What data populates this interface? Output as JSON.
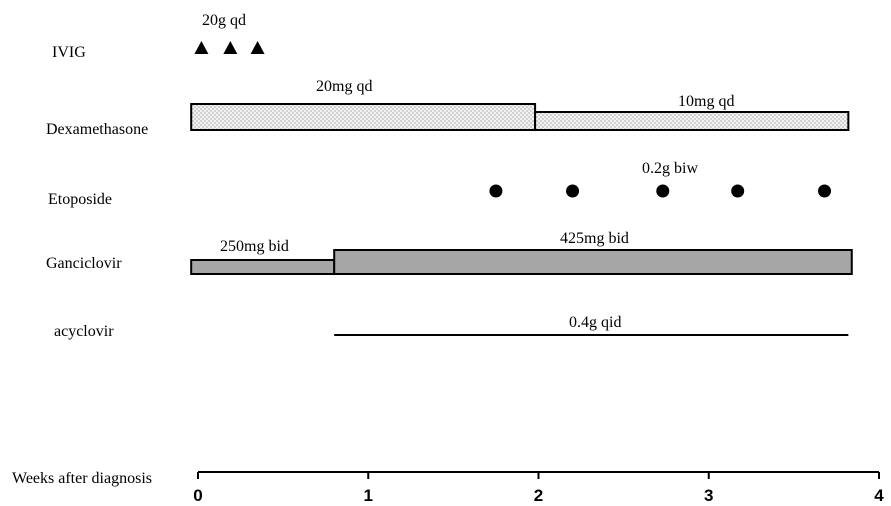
{
  "chart_data": {
    "type": "timeline",
    "xlabel": "Weeks after diagnosis",
    "xlim": [
      0,
      4
    ],
    "xticks": [
      0,
      1,
      2,
      3,
      4
    ],
    "colors": {
      "dotted_fill": "#f2f2f2",
      "grey_fill": "#a6a6a6",
      "stroke": "#000000"
    },
    "rows": [
      {
        "drug": "IVIG",
        "marker": "triangle",
        "doses": [
          {
            "label": "20g qd",
            "label_at": 0.2
          }
        ],
        "points": [
          0.02,
          0.19,
          0.35
        ]
      },
      {
        "drug": "Dexamethasone",
        "marker": "bar-dotted",
        "segments": [
          {
            "start": -0.04,
            "end": 1.98,
            "label": "20mg qd"
          },
          {
            "start": 1.98,
            "end": 3.82,
            "label": "10mg qd"
          }
        ]
      },
      {
        "drug": "Etoposide",
        "marker": "circle",
        "doses": [
          {
            "label": "0.2g biw",
            "label_at": 2.82
          }
        ],
        "points": [
          1.75,
          2.2,
          2.73,
          3.17,
          3.68
        ]
      },
      {
        "drug": "Ganciclovir",
        "marker": "bar-grey",
        "segments": [
          {
            "start": -0.04,
            "end": 0.8,
            "label": "250mg bid",
            "thin": true
          },
          {
            "start": 0.8,
            "end": 3.84,
            "label": "425mg bid",
            "thin": false
          }
        ]
      },
      {
        "drug": "acyclovir",
        "marker": "line",
        "segments": [
          {
            "start": 0.8,
            "end": 3.82,
            "label": "0.4g qid"
          }
        ]
      }
    ]
  }
}
